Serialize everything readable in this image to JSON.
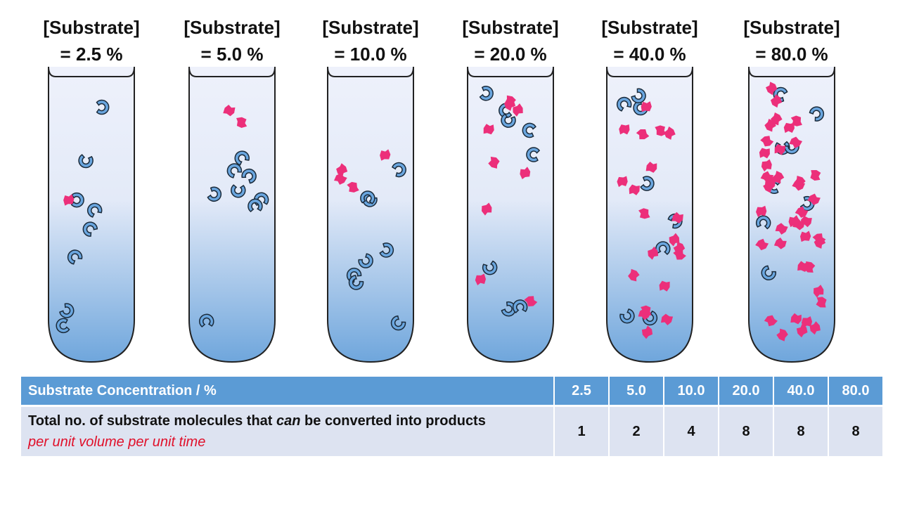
{
  "tubes": [
    {
      "title": "[Substrate]",
      "label": "= 2.5 %"
    },
    {
      "title": "[Substrate]",
      "label": "= 5.0 %"
    },
    {
      "title": "[Substrate]",
      "label": "= 10.0 %"
    },
    {
      "title": "[Substrate]",
      "label": "= 20.0 %"
    },
    {
      "title": "[Substrate]",
      "label": "= 40.0 %"
    },
    {
      "title": "[Substrate]",
      "label": "= 80.0 %"
    }
  ],
  "table": {
    "header": [
      "Substrate Concentration / %",
      "2.5",
      "5.0",
      "10.0",
      "20.0",
      "40.0",
      "80.0"
    ],
    "row": {
      "label_parts": [
        "Total no. of substrate molecules that ",
        "can",
        " be converted into products ",
        "per unit volume per unit time"
      ],
      "values": [
        1,
        2,
        4,
        8,
        8,
        8
      ]
    }
  }
}
